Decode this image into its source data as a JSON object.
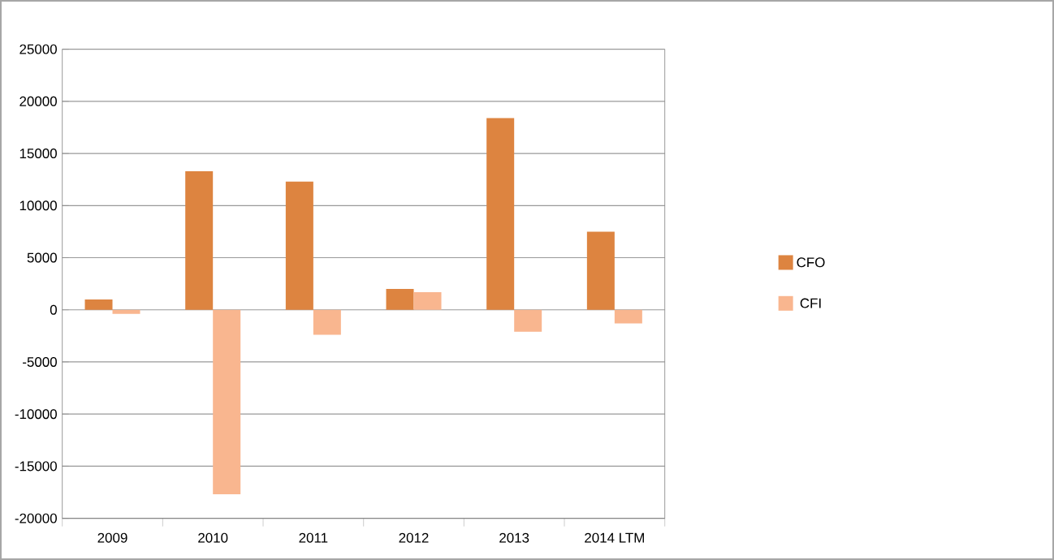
{
  "chart_data": {
    "type": "bar",
    "categories": [
      "2009",
      "2010",
      "2011",
      "2012",
      "2013",
      "2014 LTM"
    ],
    "series": [
      {
        "name": "CFO",
        "color": "#dd8440",
        "values": [
          1000,
          13300,
          12300,
          2000,
          18400,
          7500
        ]
      },
      {
        "name": "CFI",
        "color": "#f9b68f",
        "values": [
          -400,
          -17700,
          -2400,
          1700,
          -2100,
          -1300
        ]
      }
    ],
    "ylim": [
      -20000,
      25000
    ],
    "yticks": [
      -20000,
      -15000,
      -10000,
      -5000,
      0,
      5000,
      10000,
      15000,
      20000,
      25000
    ],
    "grid": "y",
    "legend": "right"
  }
}
